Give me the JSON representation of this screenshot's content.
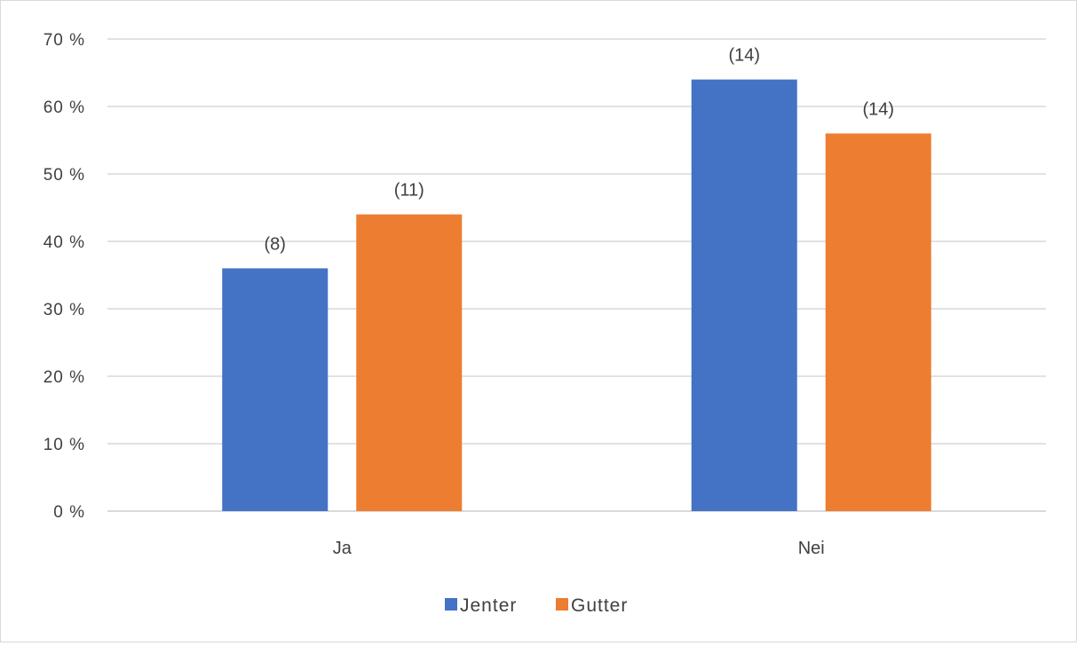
{
  "chart_data": {
    "type": "bar",
    "categories": [
      "Ja",
      "Nei"
    ],
    "series": [
      {
        "name": "Jenter",
        "values": [
          36,
          64
        ],
        "labels": [
          "(8)",
          "(14)"
        ],
        "color": "#4472C4"
      },
      {
        "name": "Gutter",
        "values": [
          44,
          56
        ],
        "labels": [
          "(11)",
          "(14)"
        ],
        "color": "#ED7D31"
      }
    ],
    "title": "",
    "xlabel": "",
    "ylabel": "",
    "ylim": [
      0,
      70
    ],
    "yticks": [
      "0 %",
      "10 %",
      "20 %",
      "30 %",
      "40 %",
      "50 %",
      "60 %",
      "70 %"
    ],
    "grid": true,
    "gridline_color": "#d9d9d9",
    "legend_position": "bottom"
  }
}
